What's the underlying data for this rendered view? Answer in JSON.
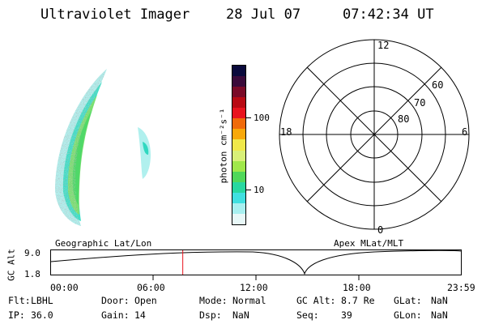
{
  "header": {
    "instrument": "Ultraviolet Imager",
    "date": "28 Jul 07",
    "time": "07:42:34 UT"
  },
  "colorbar": {
    "label": "photon cm⁻²s⁻¹",
    "ticks": [
      "100",
      "10"
    ],
    "colors": [
      "#0a0a3c",
      "#3a0a3a",
      "#7a0a28",
      "#b80a14",
      "#e8141e",
      "#f06a0a",
      "#f8a80a",
      "#f0e84a",
      "#d8f078",
      "#a0e84a",
      "#50d85a",
      "#28d8a0",
      "#40e0e0",
      "#a8f0f0",
      "#e8f8f8"
    ]
  },
  "polar_plot": {
    "local_time_labels": {
      "top": "12",
      "left": "18",
      "right": "6",
      "bottom": "0"
    },
    "latitude_labels": [
      "60",
      "70",
      "80"
    ]
  },
  "image_labels": {
    "left": "Geographic Lat/Lon",
    "right": "Apex MLat/MLT"
  },
  "altitude_plot": {
    "ylabel": "GC Alt",
    "ymax": "9.0",
    "ymin": "1.8",
    "xticks": [
      "00:00",
      "06:00",
      "12:00",
      "18:00",
      "23:59"
    ],
    "current_time_hours": 7.709,
    "marker_color": "#e8141e"
  },
  "info_panel": {
    "row1": [
      {
        "key": "Flt:",
        "value": "LBHL"
      },
      {
        "key": "Door:",
        "value": "Open"
      },
      {
        "key": "Mode:",
        "value": "Normal"
      },
      {
        "key": "GC Alt:",
        "value": "8.7 Re"
      },
      {
        "key": "GLat:",
        "value": "NaN"
      }
    ],
    "row2": [
      {
        "key": "IP:",
        "value": "36.0"
      },
      {
        "key": "Gain:",
        "value": "14"
      },
      {
        "key": "Dsp:",
        "value": "NaN"
      },
      {
        "key": "Seq:",
        "value": "39"
      },
      {
        "key": "GLon:",
        "value": "NaN"
      }
    ]
  }
}
